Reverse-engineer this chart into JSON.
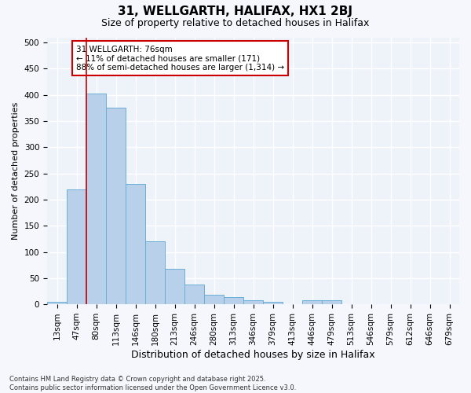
{
  "title1": "31, WELLGARTH, HALIFAX, HX1 2BJ",
  "title2": "Size of property relative to detached houses in Halifax",
  "xlabel": "Distribution of detached houses by size in Halifax",
  "ylabel": "Number of detached properties",
  "categories": [
    "13sqm",
    "47sqm",
    "80sqm",
    "113sqm",
    "146sqm",
    "180sqm",
    "213sqm",
    "246sqm",
    "280sqm",
    "313sqm",
    "346sqm",
    "379sqm",
    "413sqm",
    "446sqm",
    "479sqm",
    "513sqm",
    "546sqm",
    "579sqm",
    "612sqm",
    "646sqm",
    "679sqm"
  ],
  "values": [
    5,
    220,
    403,
    375,
    230,
    120,
    68,
    37,
    18,
    14,
    7,
    5,
    0,
    7,
    8,
    0,
    0,
    0,
    0,
    0,
    0
  ],
  "bar_color": "#b8d0ea",
  "bar_edgecolor": "#6aaed6",
  "vline_x": 2,
  "vline_color": "#cc0000",
  "annotation_text": "31 WELLGARTH: 76sqm\n← 11% of detached houses are smaller (171)\n88% of semi-detached houses are larger (1,314) →",
  "annotation_box_color": "#cc0000",
  "ylim": [
    0,
    510
  ],
  "yticks": [
    0,
    50,
    100,
    150,
    200,
    250,
    300,
    350,
    400,
    450,
    500
  ],
  "footer1": "Contains HM Land Registry data © Crown copyright and database right 2025.",
  "footer2": "Contains public sector information licensed under the Open Government Licence v3.0.",
  "bg_color": "#f5f7fc",
  "plot_bg_color": "#eef2f9",
  "grid_color": "#ffffff",
  "title1_fontsize": 11,
  "title2_fontsize": 9,
  "tick_fontsize": 7.5,
  "ylabel_fontsize": 8,
  "xlabel_fontsize": 9,
  "annot_fontsize": 7.5,
  "footer_fontsize": 6
}
